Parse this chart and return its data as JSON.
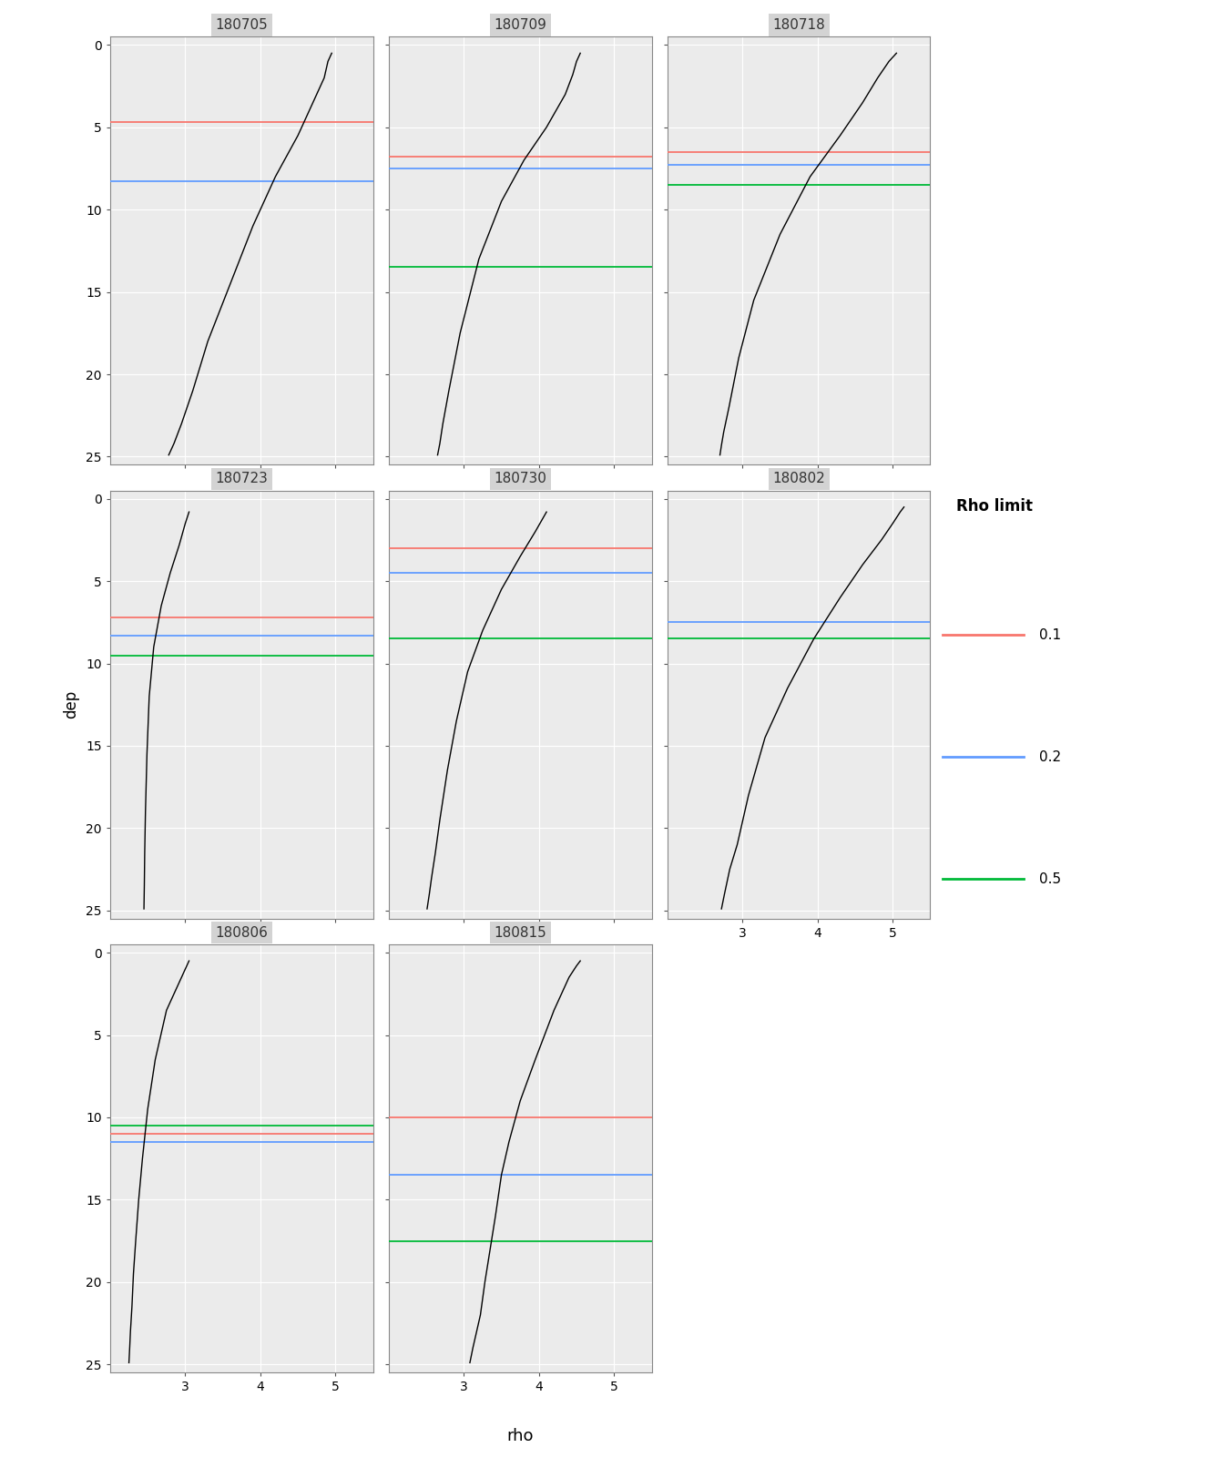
{
  "panels": [
    {
      "id": "180705",
      "rho": [
        4.95,
        4.9,
        4.85,
        4.7,
        4.5,
        4.2,
        3.9,
        3.6,
        3.3,
        3.1,
        2.95,
        2.85,
        2.78
      ],
      "dep": [
        0.5,
        1.0,
        2.0,
        3.5,
        5.5,
        8.0,
        11.0,
        14.5,
        18.0,
        21.0,
        23.0,
        24.2,
        24.9
      ],
      "mld_red": 4.7,
      "mld_blue": 8.3,
      "mld_green": null
    },
    {
      "id": "180709",
      "rho": [
        4.55,
        4.5,
        4.45,
        4.35,
        4.1,
        3.8,
        3.5,
        3.2,
        2.95,
        2.8,
        2.72,
        2.68,
        2.65
      ],
      "dep": [
        0.5,
        1.0,
        1.8,
        3.0,
        5.0,
        7.0,
        9.5,
        13.0,
        17.5,
        21.0,
        23.0,
        24.2,
        24.9
      ],
      "mld_red": 6.8,
      "mld_blue": 7.5,
      "mld_green": 13.5
    },
    {
      "id": "180718",
      "rho": [
        5.05,
        4.95,
        4.8,
        4.6,
        4.3,
        3.9,
        3.5,
        3.15,
        2.95,
        2.82,
        2.75,
        2.72,
        2.7
      ],
      "dep": [
        0.5,
        1.0,
        2.0,
        3.5,
        5.5,
        8.0,
        11.5,
        15.5,
        19.0,
        22.0,
        23.5,
        24.3,
        24.9
      ],
      "mld_red": 6.5,
      "mld_blue": 7.3,
      "mld_green": 8.5
    },
    {
      "id": "180723",
      "rho": [
        3.05,
        3.0,
        2.92,
        2.8,
        2.68,
        2.58,
        2.52,
        2.49,
        2.47,
        2.46,
        2.455,
        2.45
      ],
      "dep": [
        0.8,
        1.5,
        2.8,
        4.5,
        6.5,
        9.0,
        12.0,
        15.5,
        19.0,
        21.5,
        23.5,
        24.9
      ],
      "mld_red": 7.2,
      "mld_blue": 8.3,
      "mld_green": 9.5
    },
    {
      "id": "180730",
      "rho": [
        4.1,
        4.05,
        3.95,
        3.75,
        3.5,
        3.25,
        3.05,
        2.9,
        2.78,
        2.68,
        2.62,
        2.57,
        2.54,
        2.51
      ],
      "dep": [
        0.8,
        1.2,
        2.0,
        3.5,
        5.5,
        8.0,
        10.5,
        13.5,
        16.5,
        19.5,
        21.5,
        23.0,
        24.0,
        24.9
      ],
      "mld_red": 3.0,
      "mld_blue": 4.5,
      "mld_green": 8.5
    },
    {
      "id": "180802",
      "rho": [
        5.15,
        5.1,
        5.0,
        4.85,
        4.6,
        4.3,
        3.95,
        3.6,
        3.3,
        3.08,
        2.93,
        2.83,
        2.76,
        2.72
      ],
      "dep": [
        0.5,
        0.8,
        1.5,
        2.5,
        4.0,
        6.0,
        8.5,
        11.5,
        14.5,
        18.0,
        21.0,
        22.5,
        24.0,
        24.9
      ],
      "mld_red": null,
      "mld_blue": 7.5,
      "mld_green": 8.5
    },
    {
      "id": "180806",
      "rho": [
        3.05,
        3.0,
        2.9,
        2.75,
        2.6,
        2.5,
        2.43,
        2.38,
        2.34,
        2.31,
        2.29,
        2.27,
        2.26,
        2.25
      ],
      "dep": [
        0.5,
        1.0,
        2.0,
        3.5,
        6.5,
        9.5,
        12.5,
        15.0,
        17.5,
        19.5,
        21.5,
        23.0,
        24.0,
        24.9
      ],
      "mld_red": 11.0,
      "mld_blue": 11.5,
      "mld_green": 10.5
    },
    {
      "id": "180815",
      "rho": [
        4.55,
        4.5,
        4.4,
        4.2,
        3.95,
        3.75,
        3.6,
        3.5,
        3.42,
        3.35,
        3.28,
        3.22,
        3.17,
        3.12,
        3.08
      ],
      "dep": [
        0.5,
        0.8,
        1.5,
        3.5,
        6.5,
        9.0,
        11.5,
        13.5,
        16.0,
        18.0,
        20.0,
        22.0,
        23.0,
        24.0,
        24.9
      ],
      "mld_red": 10.0,
      "mld_blue": 13.5,
      "mld_green": 17.5
    }
  ],
  "xlim": [
    2.0,
    5.5
  ],
  "ylim": [
    25.5,
    -0.5
  ],
  "xticks": [
    3,
    4,
    5
  ],
  "yticks": [
    0,
    5,
    10,
    15,
    20,
    25
  ],
  "xlabel": "rho",
  "ylabel": "dep",
  "color_red": "#F8766D",
  "color_blue": "#619CFF",
  "color_green": "#00BA38",
  "background_plot": "#EBEBEB",
  "background_strip": "#D3D3D3",
  "grid_color": "#FFFFFF",
  "legend_title": "Rho limit",
  "legend_items": [
    "0.1",
    "0.2",
    "0.5"
  ]
}
